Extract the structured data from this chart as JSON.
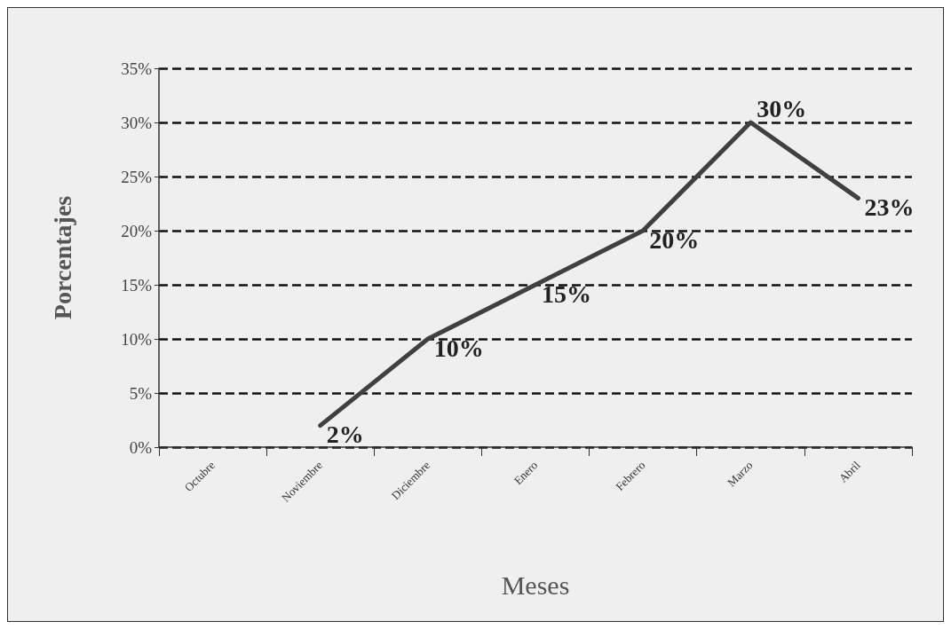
{
  "chart_data": {
    "type": "line",
    "xlabel": "Meses",
    "ylabel": "Porcentajes",
    "categories": [
      "Octubre",
      "Noviembre",
      "Diciembre",
      "Enero",
      "Febrero",
      "Marzo",
      "Abril"
    ],
    "series": [
      {
        "color": "#404040",
        "values": [
          null,
          2,
          10,
          15,
          20,
          30,
          23
        ],
        "value_labels": [
          null,
          "2%",
          "10%",
          "15%",
          "20%",
          "30%",
          "23%"
        ]
      }
    ],
    "ylim": [
      0,
      35
    ],
    "yticks": [
      {
        "value": 0,
        "label": "0%"
      },
      {
        "value": 5,
        "label": "5%"
      },
      {
        "value": 10,
        "label": "10%"
      },
      {
        "value": 15,
        "label": "15%"
      },
      {
        "value": 20,
        "label": "20%"
      },
      {
        "value": 25,
        "label": "25%"
      },
      {
        "value": 30,
        "label": "30%"
      },
      {
        "value": 35,
        "label": "35%"
      }
    ],
    "grid": "y",
    "marker": "none",
    "line_style": "solid"
  }
}
